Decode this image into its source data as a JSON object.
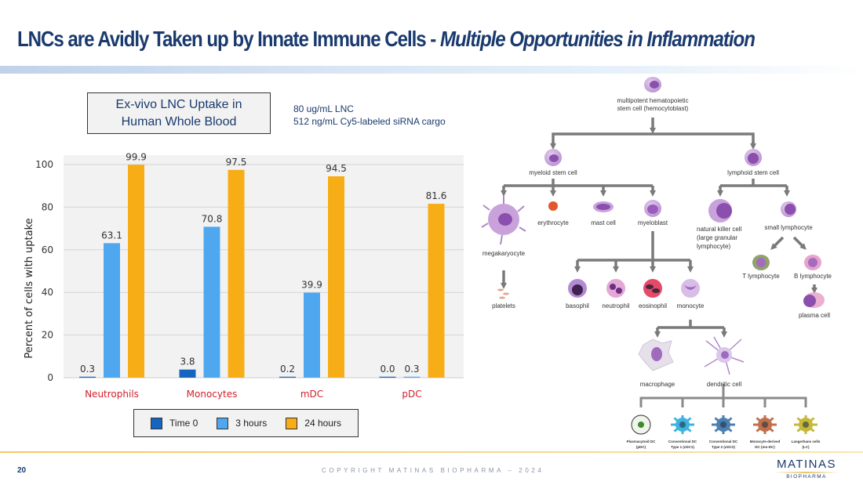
{
  "slide": {
    "title_main": "LNCs are Avidly Taken up by Innate Immune Cells",
    "title_sep": " - ",
    "title_sub": "Multiple Opportunities in Inflammation",
    "page_number": "20",
    "copyright": "COPYRIGHT MATINAS BIOPHARMA – 2024",
    "logo": {
      "name": "MATINAS",
      "tagline": "BIOPHARMA"
    }
  },
  "chart_box": {
    "title_line1": "Ex-vivo LNC Uptake in",
    "title_line2": "Human Whole Blood",
    "note_line1": "80 ug/mL LNC",
    "note_line2": "512 ng/mL Cy5-labeled siRNA cargo"
  },
  "chart_data": {
    "type": "bar",
    "title": "Ex-vivo LNC Uptake in Human Whole Blood",
    "xlabel": "",
    "ylabel": "Percent of cells with uptake",
    "ylim": [
      0,
      100
    ],
    "yticks": [
      0,
      20,
      40,
      60,
      80,
      100
    ],
    "grid": true,
    "legend_position": "bottom",
    "categories": [
      "Neutrophils",
      "Monocytes",
      "mDC",
      "pDC"
    ],
    "category_label_color": "#d0202a",
    "series": [
      {
        "name": "Time 0",
        "color": "#1565c0",
        "values": [
          0.3,
          3.8,
          0.2,
          0.0
        ]
      },
      {
        "name": "3 hours",
        "color": "#4fa8ef",
        "values": [
          63.1,
          70.8,
          39.9,
          0.3
        ]
      },
      {
        "name": "24 hours",
        "color": "#f7ae16",
        "values": [
          99.9,
          97.5,
          94.5,
          81.6
        ]
      }
    ],
    "data_labels": [
      [
        "0.3",
        "63.1",
        "99.9"
      ],
      [
        "3.8",
        "70.8",
        "97.5"
      ],
      [
        "0.2",
        "39.9",
        "94.5"
      ],
      [
        "0.0",
        "0.3",
        "81.6"
      ]
    ]
  },
  "diagram": {
    "root": {
      "line1": "multipotent hematopoietic",
      "line2": "stem cell (hemocytoblast)"
    },
    "myeloid": "myeloid stem cell",
    "lymphoid": "lymphoid stem cell",
    "megakaryocyte": "megakaryocyte",
    "erythrocyte": "erythrocyte",
    "mast_cell": "mast cell",
    "myeloblast": "myeloblast",
    "nk": {
      "line1": "natural killer cell",
      "line2": "(large granular",
      "line3": "lymphocyte)"
    },
    "small_lymphocyte": "small lymphocyte",
    "t_lymphocyte": "T lymphocyte",
    "b_lymphocyte": "B lymphocyte",
    "plasma_cell": "plasma cell",
    "platelets": "platelets",
    "basophil": "basophil",
    "neutrophil": "neutrophil",
    "eosinophil": "eosinophil",
    "monocyte": "monocyte",
    "macrophage": "macrophage",
    "dendritic_cell": "dendritic cell",
    "dc_subtypes": [
      {
        "line1": "Plasmacytoid DC",
        "line2": "(pDC)",
        "color": "#4a9a3a"
      },
      {
        "line1": "Conventional DC",
        "line2": "Type 1 (cDC1)",
        "color": "#3fb3e0"
      },
      {
        "line1": "Conventional DC",
        "line2": "Type 2 (cDC2)",
        "color": "#4d7fb0"
      },
      {
        "line1": "Monocyte-derived",
        "line2": "DC (mo-DC)",
        "color": "#c0704a"
      },
      {
        "line1": "Langerhans cells",
        "line2": "(LC)",
        "color": "#c7b83a"
      }
    ]
  }
}
